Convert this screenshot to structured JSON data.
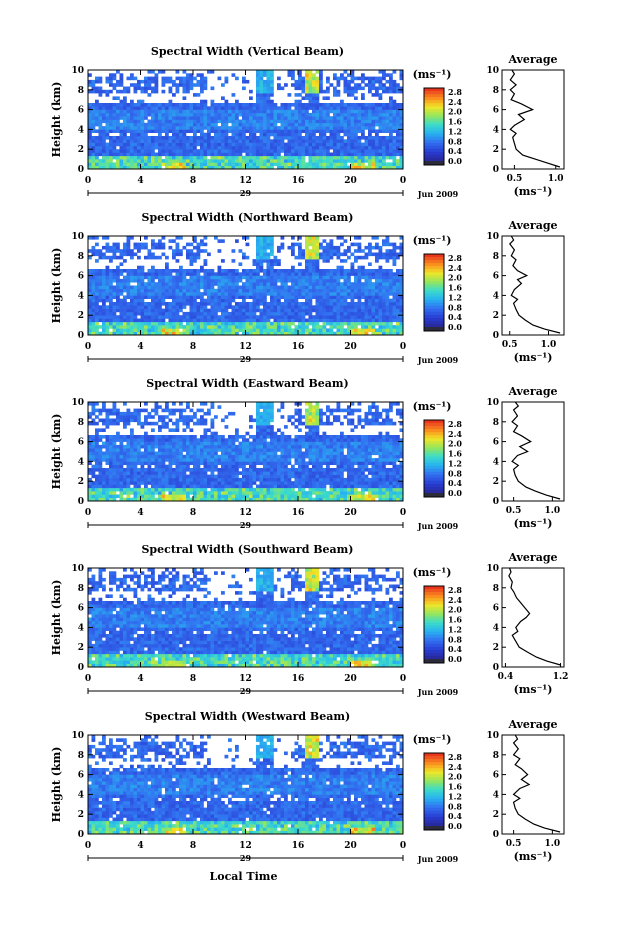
{
  "chart_data": [
    {
      "type": "heatmap",
      "title": "Spectral Width (Vertical Beam)",
      "ylabel": "Height (km)",
      "x_ticks": [
        "0",
        "4",
        "8",
        "12",
        "16",
        "20",
        "0"
      ],
      "y_ticks": [
        "0",
        "2",
        "4",
        "6",
        "8",
        "10"
      ],
      "xlim": [
        0,
        24
      ],
      "ylim": [
        0,
        10
      ],
      "day_label": "29",
      "date_label": "Jun 2009",
      "colorbar_unit": "(ms⁻¹)",
      "colorbar_ticks": [
        "2.8",
        "2.4",
        "2.0",
        "1.6",
        "1.2",
        "0.8",
        "0.4",
        "0.0"
      ],
      "profile": {
        "title": "Average",
        "xlabel": "(ms⁻¹)",
        "x_ticks": [
          "0.5",
          "1.0"
        ],
        "y_ticks": [
          "0",
          "2",
          "4",
          "6",
          "8",
          "10"
        ],
        "xlim": [
          0.35,
          1.1
        ],
        "values": [
          [
            1.05,
            0.2
          ],
          [
            0.9,
            0.6
          ],
          [
            0.75,
            1.0
          ],
          [
            0.6,
            1.4
          ],
          [
            0.52,
            2.0
          ],
          [
            0.5,
            2.6
          ],
          [
            0.48,
            3.2
          ],
          [
            0.52,
            3.6
          ],
          [
            0.45,
            4.0
          ],
          [
            0.5,
            4.4
          ],
          [
            0.62,
            5.0
          ],
          [
            0.55,
            5.5
          ],
          [
            0.72,
            6.0
          ],
          [
            0.58,
            6.6
          ],
          [
            0.46,
            7.0
          ],
          [
            0.5,
            7.6
          ],
          [
            0.45,
            8.0
          ],
          [
            0.52,
            8.5
          ],
          [
            0.45,
            9.0
          ],
          [
            0.5,
            9.6
          ],
          [
            0.47,
            10.0
          ]
        ]
      }
    },
    {
      "type": "heatmap",
      "title": "Spectral Width (Northward Beam)",
      "ylabel": "Height (km)",
      "x_ticks": [
        "0",
        "4",
        "8",
        "12",
        "16",
        "20",
        "0"
      ],
      "y_ticks": [
        "0",
        "2",
        "4",
        "6",
        "8",
        "10"
      ],
      "xlim": [
        0,
        24
      ],
      "ylim": [
        0,
        10
      ],
      "day_label": "29",
      "date_label": "Jun 2009",
      "colorbar_unit": "(ms⁻¹)",
      "colorbar_ticks": [
        "2.8",
        "2.4",
        "2.0",
        "1.6",
        "1.2",
        "0.8",
        "0.4",
        "0.0"
      ],
      "profile": {
        "title": "Average",
        "xlabel": "(ms⁻¹)",
        "x_ticks": [
          "0.5",
          "1.0"
        ],
        "y_ticks": [
          "0",
          "2",
          "4",
          "6",
          "8",
          "10"
        ],
        "xlim": [
          0.4,
          1.2
        ],
        "values": [
          [
            1.15,
            0.2
          ],
          [
            0.95,
            0.6
          ],
          [
            0.8,
            1.0
          ],
          [
            0.7,
            1.5
          ],
          [
            0.62,
            2.0
          ],
          [
            0.58,
            2.6
          ],
          [
            0.55,
            3.2
          ],
          [
            0.6,
            3.6
          ],
          [
            0.52,
            4.0
          ],
          [
            0.56,
            4.6
          ],
          [
            0.65,
            5.2
          ],
          [
            0.6,
            5.6
          ],
          [
            0.72,
            6.0
          ],
          [
            0.6,
            6.5
          ],
          [
            0.54,
            7.0
          ],
          [
            0.58,
            7.6
          ],
          [
            0.52,
            8.0
          ],
          [
            0.56,
            8.6
          ],
          [
            0.5,
            9.2
          ],
          [
            0.55,
            9.6
          ],
          [
            0.52,
            10.0
          ]
        ]
      }
    },
    {
      "type": "heatmap",
      "title": "Spectral Width (Eastward Beam)",
      "ylabel": "Height (km)",
      "x_ticks": [
        "0",
        "4",
        "8",
        "12",
        "16",
        "20",
        "0"
      ],
      "y_ticks": [
        "0",
        "2",
        "4",
        "6",
        "8",
        "10"
      ],
      "xlim": [
        0,
        24
      ],
      "ylim": [
        0,
        10
      ],
      "day_label": "29",
      "date_label": "Jun 2009",
      "colorbar_unit": "(ms⁻¹)",
      "colorbar_ticks": [
        "2.8",
        "2.4",
        "2.0",
        "1.6",
        "1.2",
        "0.8",
        "0.4",
        "0.0"
      ],
      "profile": {
        "title": "Average",
        "xlabel": "(ms⁻¹)",
        "x_ticks": [
          "0.5",
          "1.0"
        ],
        "y_ticks": [
          "0",
          "2",
          "4",
          "6",
          "8",
          "10"
        ],
        "xlim": [
          0.35,
          1.15
        ],
        "values": [
          [
            1.1,
            0.2
          ],
          [
            0.92,
            0.6
          ],
          [
            0.78,
            1.0
          ],
          [
            0.66,
            1.4
          ],
          [
            0.56,
            2.0
          ],
          [
            0.52,
            2.6
          ],
          [
            0.5,
            3.2
          ],
          [
            0.56,
            3.6
          ],
          [
            0.48,
            4.0
          ],
          [
            0.55,
            4.6
          ],
          [
            0.68,
            5.0
          ],
          [
            0.58,
            5.5
          ],
          [
            0.72,
            6.0
          ],
          [
            0.6,
            6.6
          ],
          [
            0.5,
            7.0
          ],
          [
            0.55,
            7.6
          ],
          [
            0.48,
            8.0
          ],
          [
            0.55,
            8.6
          ],
          [
            0.5,
            9.2
          ],
          [
            0.56,
            9.6
          ],
          [
            0.52,
            10.0
          ]
        ]
      }
    },
    {
      "type": "heatmap",
      "title": "Spectral Width (Southward Beam)",
      "ylabel": "Height (km)",
      "x_ticks": [
        "0",
        "4",
        "8",
        "12",
        "16",
        "20",
        "0"
      ],
      "y_ticks": [
        "0",
        "2",
        "4",
        "6",
        "8",
        "10"
      ],
      "xlim": [
        0,
        24
      ],
      "ylim": [
        0,
        10
      ],
      "day_label": "29",
      "date_label": "Jun 2009",
      "colorbar_unit": "(ms⁻¹)",
      "colorbar_ticks": [
        "2.8",
        "2.4",
        "2.0",
        "1.6",
        "1.2",
        "0.8",
        "0.4",
        "0.0"
      ],
      "profile": {
        "title": "Average",
        "xlabel": "(ms⁻¹)",
        "x_ticks": [
          "0.4",
          "1.2"
        ],
        "y_ticks": [
          "0",
          "2",
          "4",
          "6",
          "8",
          "10"
        ],
        "xlim": [
          0.35,
          1.25
        ],
        "values": [
          [
            1.2,
            0.2
          ],
          [
            1.0,
            0.6
          ],
          [
            0.85,
            1.0
          ],
          [
            0.72,
            1.5
          ],
          [
            0.6,
            2.0
          ],
          [
            0.55,
            2.6
          ],
          [
            0.5,
            3.2
          ],
          [
            0.58,
            3.6
          ],
          [
            0.55,
            4.0
          ],
          [
            0.62,
            4.6
          ],
          [
            0.7,
            5.0
          ],
          [
            0.75,
            5.4
          ],
          [
            0.68,
            6.0
          ],
          [
            0.62,
            6.5
          ],
          [
            0.56,
            7.0
          ],
          [
            0.52,
            7.6
          ],
          [
            0.48,
            8.0
          ],
          [
            0.5,
            8.6
          ],
          [
            0.45,
            9.2
          ],
          [
            0.48,
            9.6
          ],
          [
            0.46,
            10.0
          ]
        ]
      }
    },
    {
      "type": "heatmap",
      "title": "Spectral Width (Westward Beam)",
      "ylabel": "Height (km)",
      "xlabel": "Local Time",
      "x_ticks": [
        "0",
        "4",
        "8",
        "12",
        "16",
        "20",
        "0"
      ],
      "y_ticks": [
        "0",
        "2",
        "4",
        "6",
        "8",
        "10"
      ],
      "xlim": [
        0,
        24
      ],
      "ylim": [
        0,
        10
      ],
      "day_label": "29",
      "date_label": "Jun 2009",
      "colorbar_unit": "(ms⁻¹)",
      "colorbar_ticks": [
        "2.8",
        "2.4",
        "2.0",
        "1.6",
        "1.2",
        "0.8",
        "0.4",
        "0.0"
      ],
      "profile": {
        "title": "Average",
        "xlabel": "(ms⁻¹)",
        "x_ticks": [
          "0.5",
          "1.0"
        ],
        "y_ticks": [
          "0",
          "2",
          "4",
          "6",
          "8",
          "10"
        ],
        "xlim": [
          0.35,
          1.15
        ],
        "values": [
          [
            1.1,
            0.2
          ],
          [
            0.9,
            0.6
          ],
          [
            0.76,
            1.0
          ],
          [
            0.65,
            1.5
          ],
          [
            0.56,
            2.0
          ],
          [
            0.52,
            2.6
          ],
          [
            0.5,
            3.2
          ],
          [
            0.58,
            3.6
          ],
          [
            0.5,
            4.0
          ],
          [
            0.58,
            4.6
          ],
          [
            0.7,
            5.0
          ],
          [
            0.6,
            5.5
          ],
          [
            0.68,
            6.0
          ],
          [
            0.6,
            6.6
          ],
          [
            0.52,
            7.0
          ],
          [
            0.58,
            7.6
          ],
          [
            0.5,
            8.0
          ],
          [
            0.56,
            8.6
          ],
          [
            0.5,
            9.2
          ],
          [
            0.55,
            9.6
          ],
          [
            0.52,
            10.0
          ]
        ]
      }
    }
  ]
}
